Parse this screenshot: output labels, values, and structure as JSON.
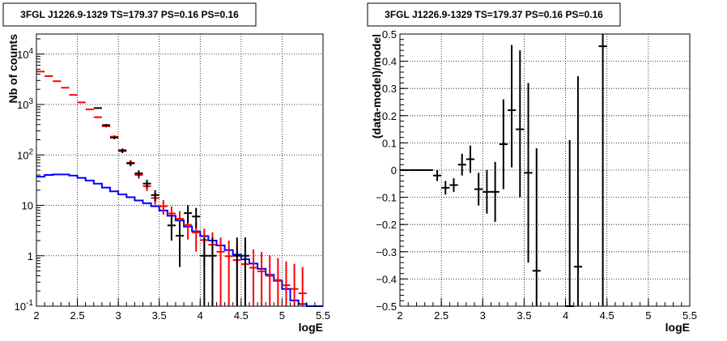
{
  "chart_data": [
    {
      "type": "histogram",
      "title": "3FGL J1226.9-1329 TS=179.37 PS=0.16 PS=0.16",
      "xlabel": "logE",
      "ylabel": "Nb of counts",
      "xlim": [
        2,
        5.5
      ],
      "ylim": [
        0.1,
        25000
      ],
      "yscale": "log",
      "grid": true,
      "x_ticks": [
        "2",
        "2.5",
        "3",
        "3.5",
        "4",
        "4.5",
        "5",
        "5.5"
      ],
      "y_ticks": [
        {
          "value": 0.1,
          "label": "10^-1"
        },
        {
          "value": 1,
          "label": "1"
        },
        {
          "value": 10,
          "label": "10"
        },
        {
          "value": 100,
          "label": "10^2"
        },
        {
          "value": 1000,
          "label": "10^3"
        },
        {
          "value": 10000,
          "label": "10^4"
        }
      ],
      "bin_width": 0.1,
      "series": [
        {
          "kind": "step",
          "color": "#0000ff",
          "x": [
            2.05,
            2.15,
            2.25,
            2.35,
            2.45,
            2.55,
            2.65,
            2.75,
            2.85,
            2.95,
            3.05,
            3.15,
            3.25,
            3.35,
            3.45,
            3.55,
            3.65,
            3.75,
            3.85,
            3.95,
            4.05,
            4.15,
            4.25,
            4.35,
            4.45,
            4.55,
            4.65,
            4.75,
            4.85,
            4.95,
            5.05,
            5.15,
            5.25,
            5.35,
            5.45
          ],
          "values": [
            37,
            40,
            41,
            41,
            39,
            35,
            31,
            27,
            22.5,
            19,
            16.5,
            14.5,
            12.5,
            11,
            9.6,
            7.9,
            6.2,
            5,
            3.8,
            3.05,
            2.45,
            2.0,
            1.6,
            1.3,
            1.05,
            0.85,
            0.7,
            0.55,
            0.42,
            0.32,
            0.22,
            0.13,
            0.11,
            0.1,
            0.1
          ]
        },
        {
          "kind": "errorbar",
          "color": "#ff0000",
          "x": [
            2.05,
            2.15,
            2.25,
            2.35,
            2.45,
            2.55,
            2.65,
            2.75,
            2.85,
            2.95,
            3.05,
            3.15,
            3.25,
            3.35,
            3.45,
            3.55,
            3.65,
            3.75,
            3.85,
            3.95,
            4.05,
            4.15,
            4.25,
            4.35,
            4.45,
            4.55,
            4.65,
            4.75,
            4.85,
            4.95,
            5.05,
            5.15,
            5.25
          ],
          "values": [
            4500,
            3650,
            2900,
            2150,
            1550,
            1100,
            800,
            560,
            370,
            230,
            125,
            70,
            40,
            24,
            14,
            9.6,
            6.9,
            5.4,
            4.1,
            2.9,
            2.05,
            1.65,
            1.2,
            0.98,
            0.82,
            0.68,
            0.58,
            0.49,
            0.4,
            0.33,
            0.26,
            0.22,
            0.18
          ],
          "err_lo": [
            0,
            0,
            0,
            0,
            0,
            33,
            28,
            24,
            19,
            15,
            11,
            8.4,
            6.3,
            4.9,
            3.7,
            3.1,
            2.6,
            2.3,
            2.0,
            1.7,
            1.4,
            1.28,
            1.1,
            0.98,
            0.82,
            0.68,
            0.58,
            0.49,
            0.4,
            0.33,
            0.26,
            0.22,
            0.18
          ],
          "err_hi": [
            0,
            0,
            0,
            0,
            0,
            33,
            28,
            24,
            19,
            15,
            11,
            8.4,
            6.3,
            4.9,
            3.7,
            3.1,
            2.6,
            2.3,
            2.0,
            1.7,
            1.4,
            1.28,
            1.1,
            1.0,
            0.9,
            0.82,
            0.76,
            0.7,
            0.63,
            0.57,
            0.51,
            0.47,
            0.42
          ]
        },
        {
          "kind": "errorbar",
          "color": "#000000",
          "x": [
            2.75,
            2.85,
            2.95,
            3.05,
            3.15,
            3.25,
            3.35,
            3.45,
            3.65,
            3.75,
            3.85,
            3.95,
            4.05,
            4.15,
            4.45,
            4.55
          ],
          "values": [
            850,
            390,
            220,
            120,
            68,
            43,
            27,
            16,
            4,
            2.5,
            7,
            6,
            1,
            1,
            1,
            1
          ],
          "err_lo": [
            29,
            20,
            15,
            11,
            8.2,
            6.6,
            5.2,
            4,
            2,
            1.9,
            2.6,
            2.4,
            1,
            1,
            1,
            1
          ],
          "err_hi": [
            29,
            20,
            15,
            11,
            8.2,
            6.6,
            5.2,
            4,
            2.5,
            2.3,
            3.1,
            2.9,
            1.3,
            1.3,
            1.3,
            1.3
          ]
        }
      ]
    },
    {
      "type": "scatter",
      "title": "3FGL J1226.9-1329 TS=179.37 PS=0.16 PS=0.16",
      "xlabel": "logE",
      "ylabel": "(data-model)/model",
      "xlim": [
        2,
        5.5
      ],
      "ylim": [
        -0.5,
        0.5
      ],
      "grid": true,
      "x_ticks": [
        "2",
        "2.5",
        "3",
        "3.5",
        "4",
        "4.5",
        "5",
        "5.5"
      ],
      "y_ticks": [
        {
          "value": -0.5,
          "label": "−0.5"
        },
        {
          "value": -0.4,
          "label": "−0.4"
        },
        {
          "value": -0.3,
          "label": "−0.3"
        },
        {
          "value": -0.2,
          "label": "−0.2"
        },
        {
          "value": -0.1,
          "label": "−0.1"
        },
        {
          "value": 0,
          "label": "0"
        },
        {
          "value": 0.1,
          "label": "0.1"
        },
        {
          "value": 0.2,
          "label": "0.2"
        },
        {
          "value": 0.3,
          "label": "0.3"
        },
        {
          "value": 0.4,
          "label": "0.4"
        },
        {
          "value": 0.5,
          "label": "0.5"
        }
      ],
      "series": [
        {
          "color": "#000000",
          "x": [
            2.05,
            2.15,
            2.25,
            2.35,
            2.45,
            2.55,
            2.65,
            2.75,
            2.85,
            2.95,
            3.05,
            3.15,
            3.25,
            3.35,
            3.45,
            3.55,
            3.65,
            4.05,
            4.15,
            4.45
          ],
          "y": [
            0,
            0,
            0,
            0,
            -0.02,
            -0.065,
            -0.055,
            0.02,
            0.04,
            -0.07,
            -0.08,
            -0.08,
            0.095,
            0.22,
            0.15,
            -0.01,
            -0.37,
            -0.5,
            -0.355,
            0.455
          ],
          "err_lo": [
            0,
            0,
            0,
            0,
            0.02,
            0.025,
            0.025,
            0.04,
            0.05,
            0.06,
            0.08,
            0.11,
            0.165,
            0.21,
            0.25,
            0.33,
            0.45,
            0.6,
            0.95,
            1
          ],
          "err_hi": [
            0,
            0,
            0,
            0,
            0.02,
            0.025,
            0.025,
            0.04,
            0.05,
            0.06,
            0.08,
            0.11,
            0.165,
            0.24,
            0.29,
            0.33,
            0.45,
            0.61,
            0.7,
            1
          ]
        }
      ]
    }
  ]
}
